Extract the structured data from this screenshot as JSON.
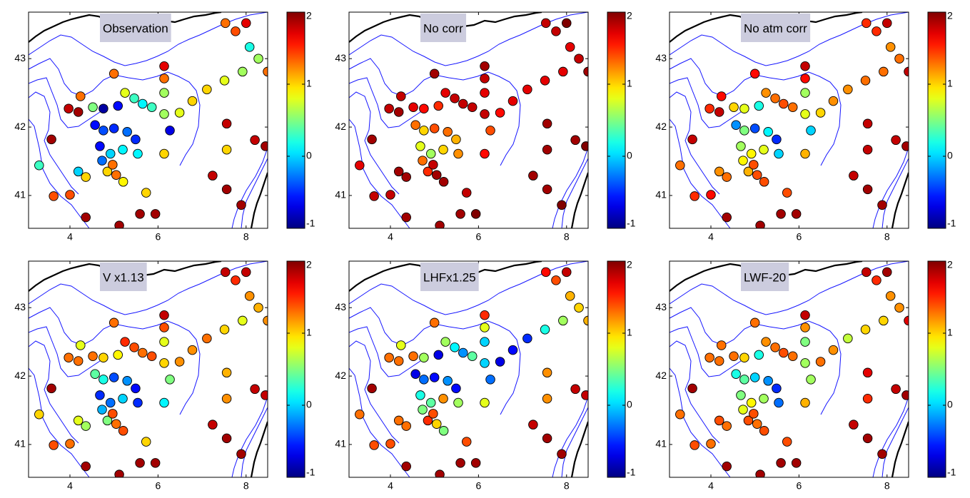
{
  "chart_data": [
    {
      "type": "scatter",
      "title": "Observation",
      "colormap": "jet",
      "x": [
        7.53,
        8.0,
        7.76,
        8.08,
        8.28,
        8.49,
        7.92,
        7.51,
        7.11,
        6.78,
        6.49,
        6.27,
        6.14,
        6.14,
        6.14,
        6.14,
        6.14,
        7.56,
        7.56,
        7.24,
        7.56,
        7.89,
        8.2,
        8.44,
        5.0,
        4.24,
        3.97,
        4.19,
        3.58,
        3.3,
        3.63,
        4.0,
        4.36,
        5.12,
        5.59,
        5.94,
        5.73,
        4.52,
        4.76,
        5.09,
        5.25,
        5.46,
        5.65,
        5.86,
        4.57,
        4.76,
        5.0,
        5.3,
        5.49,
        4.68,
        4.92,
        5.2,
        5.54,
        4.73,
        4.85,
        4.97,
        4.19,
        4.36,
        5.05,
        5.21
      ],
      "y": [
        43.52,
        43.52,
        43.4,
        43.17,
        43.0,
        42.81,
        42.81,
        42.68,
        42.55,
        42.38,
        42.21,
        41.95,
        42.89,
        42.71,
        42.5,
        42.19,
        41.61,
        42.05,
        41.67,
        41.29,
        41.09,
        40.86,
        41.81,
        41.72,
        42.78,
        42.45,
        42.27,
        42.22,
        41.82,
        41.44,
        40.99,
        41.01,
        40.68,
        40.56,
        40.73,
        40.73,
        41.04,
        42.29,
        42.27,
        42.31,
        42.5,
        42.42,
        42.34,
        42.29,
        42.03,
        41.95,
        41.98,
        41.93,
        41.82,
        41.72,
        41.61,
        41.67,
        41.61,
        41.51,
        41.35,
        41.45,
        41.35,
        41.27,
        41.3,
        41.2
      ],
      "values": [
        1.3,
        1.7,
        1.4,
        0.2,
        0.6,
        1.3,
        0.6,
        0.8,
        1.0,
        1.0,
        0.8,
        -0.7,
        1.7,
        1.3,
        0.6,
        0.6,
        1.0,
        1.8,
        1.0,
        1.8,
        1.9,
        1.9,
        1.8,
        1.9,
        1.3,
        1.3,
        1.8,
        1.9,
        1.9,
        0.3,
        1.4,
        1.4,
        1.9,
        1.9,
        1.9,
        1.9,
        1.0,
        0.5,
        -0.9,
        -0.6,
        0.8,
        0.3,
        0.1,
        0.3,
        -0.6,
        -0.4,
        -0.5,
        -0.3,
        -0.5,
        -0.6,
        0,
        0.1,
        0.1,
        -0.3,
        1.0,
        1.3,
        0.0,
        1.0,
        1.3,
        0.9
      ],
      "xlim": [
        3.06,
        8.49
      ],
      "ylim": [
        40.52,
        43.68
      ],
      "xticks": [
        4,
        6,
        8
      ],
      "yticks": [
        41,
        42,
        43
      ],
      "clim": [
        -1,
        2
      ],
      "cticks": [
        -1,
        0,
        1,
        2
      ]
    },
    {
      "type": "scatter",
      "title": "No corr",
      "colormap": "jet",
      "x": [
        7.53,
        8.0,
        7.76,
        8.08,
        8.28,
        8.49,
        7.92,
        7.51,
        7.11,
        6.78,
        6.49,
        6.27,
        6.14,
        6.14,
        6.14,
        6.14,
        6.14,
        7.56,
        7.56,
        7.24,
        7.56,
        7.89,
        8.2,
        8.44,
        5.0,
        4.24,
        3.97,
        4.19,
        3.58,
        3.3,
        3.63,
        4.0,
        4.36,
        5.12,
        5.59,
        5.94,
        5.73,
        4.52,
        4.76,
        5.09,
        5.25,
        5.46,
        5.65,
        5.86,
        4.57,
        4.76,
        5.0,
        5.3,
        5.49,
        4.68,
        4.92,
        5.2,
        5.54,
        4.73,
        4.85,
        4.97,
        4.19,
        4.36,
        5.05,
        5.21
      ],
      "y": [
        43.52,
        43.52,
        43.4,
        43.17,
        43.0,
        42.81,
        42.81,
        42.68,
        42.55,
        42.38,
        42.21,
        41.95,
        42.89,
        42.71,
        42.5,
        42.19,
        41.61,
        42.05,
        41.67,
        41.29,
        41.09,
        40.86,
        41.81,
        41.72,
        42.78,
        42.45,
        42.27,
        42.22,
        41.82,
        41.44,
        40.99,
        41.01,
        40.68,
        40.56,
        40.73,
        40.73,
        41.04,
        42.29,
        42.27,
        42.31,
        42.5,
        42.42,
        42.34,
        42.29,
        42.03,
        41.95,
        41.98,
        41.93,
        41.82,
        41.72,
        41.61,
        41.67,
        41.61,
        41.51,
        41.35,
        41.45,
        41.35,
        41.27,
        41.3,
        41.2
      ],
      "values": [
        1.8,
        2,
        1.8,
        1.7,
        1.8,
        1.9,
        1.7,
        1.7,
        1.7,
        1.7,
        1.6,
        1.4,
        1.9,
        1.8,
        1.7,
        1.8,
        1.6,
        1.9,
        1.9,
        1.9,
        1.9,
        2,
        1.9,
        2,
        1.9,
        1.8,
        1.8,
        1.9,
        1.9,
        1.7,
        1.8,
        1.8,
        1.9,
        1.9,
        1.9,
        2,
        1.8,
        1.7,
        1.6,
        1.5,
        1.7,
        1.8,
        1.8,
        1.8,
        1.3,
        1.0,
        1.4,
        1.3,
        1.1,
        0.8,
        0.6,
        1.0,
        1.2,
        1.3,
        1.5,
        1.8,
        1.9,
        1.9,
        1.9,
        1.9
      ],
      "xlim": [
        3.06,
        8.49
      ],
      "ylim": [
        40.52,
        43.68
      ],
      "xticks": [
        4,
        6,
        8
      ],
      "yticks": [
        41,
        42,
        43
      ],
      "clim": [
        -1,
        2
      ],
      "cticks": [
        -1,
        0,
        1,
        2
      ]
    },
    {
      "type": "scatter",
      "title": "No atm corr",
      "colormap": "jet",
      "x": [
        7.53,
        8.0,
        7.76,
        8.08,
        8.28,
        8.49,
        7.92,
        7.51,
        7.11,
        6.78,
        6.49,
        6.27,
        6.14,
        6.14,
        6.14,
        6.14,
        6.14,
        7.56,
        7.56,
        7.24,
        7.56,
        7.89,
        8.2,
        8.44,
        5.0,
        4.24,
        3.97,
        4.19,
        3.58,
        3.3,
        3.63,
        4.0,
        4.36,
        5.12,
        5.59,
        5.94,
        5.73,
        4.52,
        4.76,
        5.09,
        5.25,
        5.46,
        5.65,
        5.86,
        4.57,
        4.76,
        5.0,
        5.3,
        5.49,
        4.68,
        4.92,
        5.2,
        5.54,
        4.73,
        4.85,
        4.97,
        4.19,
        4.36,
        5.05,
        5.21
      ],
      "y": [
        43.52,
        43.52,
        43.4,
        43.17,
        43.0,
        42.81,
        42.81,
        42.68,
        42.55,
        42.38,
        42.21,
        41.95,
        42.89,
        42.71,
        42.5,
        42.19,
        41.61,
        42.05,
        41.67,
        41.29,
        41.09,
        40.86,
        41.81,
        41.72,
        42.78,
        42.45,
        42.27,
        42.22,
        41.82,
        41.44,
        40.99,
        41.01,
        40.68,
        40.56,
        40.73,
        40.73,
        41.04,
        42.29,
        42.27,
        42.31,
        42.5,
        42.42,
        42.34,
        42.29,
        42.03,
        41.95,
        41.98,
        41.93,
        41.82,
        41.72,
        41.61,
        41.67,
        41.61,
        41.51,
        41.35,
        41.45,
        41.35,
        41.27,
        41.3,
        41.2
      ],
      "values": [
        1.5,
        1.8,
        1.5,
        1.2,
        1.3,
        1.8,
        1.3,
        1.3,
        1.2,
        1.2,
        1.0,
        0,
        1.8,
        1.6,
        0.6,
        0.8,
        1.1,
        1.8,
        1.8,
        1.8,
        1.9,
        1.9,
        1.8,
        1.9,
        1.6,
        1.6,
        1.5,
        1.8,
        1.8,
        1.3,
        1.5,
        1.6,
        1.9,
        1.9,
        1.9,
        1.9,
        1.4,
        1.0,
        0.8,
        0.2,
        1.2,
        1.3,
        1.4,
        1.3,
        -0.2,
        0.5,
        -0.4,
        0.1,
        -0.5,
        0.6,
        0.9,
        0.8,
        0,
        0.9,
        1.1,
        1.4,
        1.2,
        1.3,
        1.4,
        1.4
      ],
      "xlim": [
        3.06,
        8.49
      ],
      "ylim": [
        40.52,
        43.68
      ],
      "xticks": [
        4,
        6,
        8
      ],
      "yticks": [
        41,
        42,
        43
      ],
      "clim": [
        -1,
        2
      ],
      "cticks": [
        -1,
        0,
        1,
        2
      ]
    },
    {
      "type": "scatter",
      "title": "V x1.13",
      "colormap": "jet",
      "x": [
        7.53,
        8.0,
        7.76,
        8.08,
        8.28,
        8.49,
        7.92,
        7.51,
        7.11,
        6.78,
        6.49,
        6.27,
        6.14,
        6.14,
        6.14,
        6.14,
        6.14,
        7.56,
        7.56,
        7.24,
        7.56,
        7.89,
        8.2,
        8.44,
        5.0,
        4.24,
        3.97,
        4.19,
        3.58,
        3.3,
        3.63,
        4.0,
        4.36,
        5.12,
        5.59,
        5.94,
        5.73,
        4.52,
        4.76,
        5.09,
        5.25,
        5.46,
        5.65,
        5.86,
        4.57,
        4.76,
        5.0,
        5.3,
        5.49,
        4.68,
        4.92,
        5.2,
        5.54,
        4.73,
        4.85,
        4.97,
        4.19,
        4.36,
        5.05,
        5.21
      ],
      "y": [
        43.52,
        43.52,
        43.4,
        43.17,
        43.0,
        42.81,
        42.81,
        42.68,
        42.55,
        42.38,
        42.21,
        41.95,
        42.89,
        42.71,
        42.5,
        42.19,
        41.61,
        42.05,
        41.67,
        41.29,
        41.09,
        40.86,
        41.81,
        41.72,
        42.78,
        42.45,
        42.27,
        42.22,
        41.82,
        41.44,
        40.99,
        41.01,
        40.68,
        40.56,
        40.73,
        40.73,
        41.04,
        42.29,
        42.27,
        42.31,
        42.5,
        42.42,
        42.34,
        42.29,
        42.03,
        41.95,
        41.98,
        41.93,
        41.82,
        41.72,
        41.61,
        41.67,
        41.61,
        41.51,
        41.35,
        41.45,
        41.35,
        41.27,
        41.3,
        41.2
      ],
      "values": [
        1.8,
        1.8,
        1.5,
        1.2,
        1.1,
        1.2,
        0.8,
        1.0,
        1.3,
        1.2,
        1.2,
        0.5,
        1.8,
        1.4,
        0.8,
        1.0,
        0.1,
        1.1,
        1.2,
        1.8,
        1.9,
        1.9,
        1.8,
        1.8,
        1.3,
        0.8,
        1.3,
        1.3,
        1.9,
        1.0,
        1.4,
        1.3,
        1.9,
        1.9,
        1.9,
        1.9,
        1.0,
        1.3,
        1.0,
        0.9,
        1.5,
        1.4,
        1.3,
        1.4,
        0.4,
        0.2,
        -0.4,
        -0.2,
        -0.6,
        -0.5,
        -0.3,
        0.0,
        -0.5,
        -0.1,
        0.5,
        1.4,
        0.8,
        0.6,
        1.3,
        1.4
      ],
      "xlim": [
        3.06,
        8.49
      ],
      "ylim": [
        40.52,
        43.68
      ],
      "xticks": [
        4,
        6,
        8
      ],
      "yticks": [
        41,
        42,
        43
      ],
      "clim": [
        -1,
        2
      ],
      "cticks": [
        -1,
        0,
        1,
        2
      ]
    },
    {
      "type": "scatter",
      "title": "LHFx1.25",
      "colormap": "jet",
      "x": [
        7.53,
        8.0,
        7.76,
        8.08,
        8.28,
        8.49,
        7.92,
        7.51,
        7.11,
        6.78,
        6.49,
        6.27,
        6.14,
        6.14,
        6.14,
        6.14,
        6.14,
        7.56,
        7.56,
        7.24,
        7.56,
        7.89,
        8.2,
        8.44,
        5.0,
        4.24,
        3.97,
        4.19,
        3.58,
        3.3,
        3.63,
        4.0,
        4.36,
        5.12,
        5.59,
        5.94,
        5.73,
        4.52,
        4.76,
        5.09,
        5.25,
        5.46,
        5.65,
        5.86,
        4.57,
        4.76,
        5.0,
        5.3,
        5.49,
        4.68,
        4.92,
        5.2,
        5.54,
        4.73,
        4.85,
        4.97,
        4.19,
        4.36,
        5.05,
        5.21
      ],
      "y": [
        43.52,
        43.52,
        43.4,
        43.17,
        43.0,
        42.81,
        42.81,
        42.68,
        42.55,
        42.38,
        42.21,
        41.95,
        42.89,
        42.71,
        42.5,
        42.19,
        41.61,
        42.05,
        41.67,
        41.29,
        41.09,
        40.86,
        41.81,
        41.72,
        42.78,
        42.45,
        42.27,
        42.22,
        41.82,
        41.44,
        40.99,
        41.01,
        40.68,
        40.56,
        40.73,
        40.73,
        41.04,
        42.29,
        42.27,
        42.31,
        42.5,
        42.42,
        42.34,
        42.29,
        42.03,
        41.95,
        41.98,
        41.93,
        41.82,
        41.72,
        41.61,
        41.67,
        41.61,
        41.51,
        41.35,
        41.45,
        41.35,
        41.27,
        41.3,
        41.2
      ],
      "values": [
        1.6,
        1.8,
        1.4,
        1.1,
        1.0,
        1.1,
        0.6,
        0.2,
        -0.5,
        -0.6,
        -0.7,
        -0.3,
        1.5,
        0.8,
        0,
        0,
        0.8,
        1.2,
        1.2,
        1.8,
        1.9,
        1.9,
        1.8,
        1.8,
        1.3,
        0.8,
        1.3,
        1.3,
        1.9,
        1.3,
        1.4,
        1.4,
        1.9,
        1.9,
        1.9,
        1.9,
        1.4,
        1.3,
        0.6,
        -0.7,
        0.6,
        0.1,
        -0.2,
        0.4,
        -0.7,
        -0.3,
        -0.6,
        -0.2,
        -0.6,
        0.2,
        0.4,
        1.2,
        0.6,
        0.5,
        1.5,
        1.4,
        1.3,
        1.3,
        1.0,
        0.5
      ],
      "xlim": [
        3.06,
        8.49
      ],
      "ylim": [
        40.52,
        43.68
      ],
      "xticks": [
        4,
        6,
        8
      ],
      "yticks": [
        41,
        42,
        43
      ],
      "clim": [
        -1,
        2
      ],
      "cticks": [
        -1,
        0,
        1,
        2
      ]
    },
    {
      "type": "scatter",
      "title": "LWF-20",
      "colormap": "jet",
      "x": [
        7.53,
        8.0,
        7.76,
        8.08,
        8.28,
        8.49,
        7.92,
        7.51,
        7.11,
        6.78,
        6.49,
        6.27,
        6.14,
        6.14,
        6.14,
        6.14,
        6.14,
        7.56,
        7.56,
        7.24,
        7.56,
        7.89,
        8.2,
        8.44,
        5.0,
        4.24,
        3.97,
        4.19,
        3.58,
        3.3,
        3.63,
        4.0,
        4.36,
        5.12,
        5.59,
        5.94,
        5.73,
        4.52,
        4.76,
        5.09,
        5.25,
        5.46,
        5.65,
        5.86,
        4.57,
        4.76,
        5.0,
        5.3,
        5.49,
        4.68,
        4.92,
        5.2,
        5.54,
        4.73,
        4.85,
        4.97,
        4.19,
        4.36,
        5.05,
        5.21
      ],
      "y": [
        43.52,
        43.52,
        43.4,
        43.17,
        43.0,
        42.81,
        42.81,
        42.68,
        42.55,
        42.38,
        42.21,
        41.95,
        42.89,
        42.71,
        42.5,
        42.19,
        41.61,
        42.05,
        41.67,
        41.29,
        41.09,
        40.86,
        41.81,
        41.72,
        42.78,
        42.45,
        42.27,
        42.22,
        41.82,
        41.44,
        40.99,
        41.01,
        40.68,
        40.56,
        40.73,
        40.73,
        41.04,
        42.29,
        42.27,
        42.31,
        42.5,
        42.42,
        42.34,
        42.29,
        42.03,
        41.95,
        41.98,
        41.93,
        41.82,
        41.72,
        41.61,
        41.67,
        41.61,
        41.51,
        41.35,
        41.45,
        41.35,
        41.27,
        41.3,
        41.2
      ],
      "values": [
        1.8,
        1.9,
        1.5,
        1.2,
        1.2,
        1.7,
        1.0,
        1.0,
        0.7,
        1.2,
        1.3,
        0.6,
        1.8,
        1.2,
        0.5,
        0.6,
        1.1,
        1.7,
        1.5,
        1.8,
        1.9,
        1.9,
        1.8,
        1.9,
        1.3,
        1.3,
        1.3,
        1.3,
        1.9,
        1.3,
        1.4,
        1.3,
        1.9,
        1.9,
        1.9,
        1.9,
        1.4,
        1.3,
        1.0,
        0.2,
        1.2,
        1.3,
        1.4,
        1.3,
        0.2,
        0.4,
        0.0,
        -0.2,
        -0.5,
        0.5,
        0.9,
        0.6,
        -0.3,
        0.8,
        1.4,
        1.4,
        1.4,
        1.3,
        1.3,
        1.4
      ],
      "xlim": [
        3.06,
        8.49
      ],
      "ylim": [
        40.52,
        43.68
      ],
      "xticks": [
        4,
        6,
        8
      ],
      "yticks": [
        41,
        42,
        43
      ],
      "clim": [
        -1,
        2
      ],
      "cticks": [
        -1,
        0,
        1,
        2
      ]
    }
  ]
}
